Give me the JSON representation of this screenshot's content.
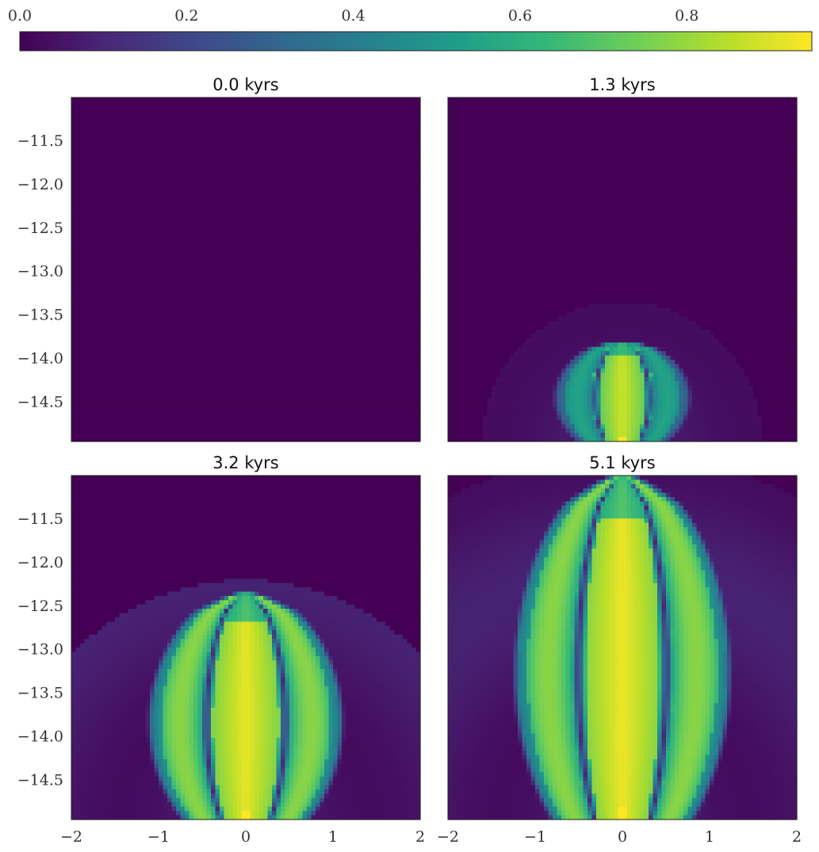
{
  "colormap": {
    "name": "viridis",
    "stops": [
      "#440154",
      "#482878",
      "#3e4989",
      "#31688e",
      "#26828e",
      "#1f9e89",
      "#35b779",
      "#6ece58",
      "#b5de2b",
      "#fde725"
    ],
    "range": [
      0,
      0.95
    ]
  },
  "chart_data": [
    {
      "type": "heatmap",
      "title": "0.0 kyrs",
      "xlim": [
        -2,
        2
      ],
      "ylim": [
        -14.95,
        -11.0
      ],
      "field": {
        "active": false
      },
      "yticks": [
        "−11.5",
        "−12.0",
        "−12.5",
        "−13.0",
        "−13.5",
        "−14.0",
        "−14.5"
      ],
      "xticks": []
    },
    {
      "type": "heatmap",
      "title": "1.3 kyrs",
      "xlim": [
        -2,
        2
      ],
      "ylim": [
        -14.95,
        -11.0
      ],
      "field": {
        "active": true,
        "top": -13.8,
        "halo_radius": 1.6,
        "shell_width": 0.72,
        "core_level": 0.88,
        "ring_level": 0.55
      },
      "yticks": [],
      "xticks": []
    },
    {
      "type": "heatmap",
      "title": "3.2 kyrs",
      "xlim": [
        -2,
        2
      ],
      "ylim": [
        -14.95,
        -11.0
      ],
      "field": {
        "active": true,
        "top": -12.35,
        "halo_radius": 2.75,
        "shell_width": 1.05,
        "core_level": 0.92,
        "ring_level": 0.78
      },
      "yticks": [
        "−11.5",
        "−12.0",
        "−12.5",
        "−13.0",
        "−13.5",
        "−14.0",
        "−14.5"
      ],
      "xticks": [
        "−2",
        "−1",
        "0",
        "1",
        "2"
      ]
    },
    {
      "type": "heatmap",
      "title": "5.1 kyrs",
      "xlim": [
        -2,
        2
      ],
      "ylim": [
        -14.95,
        -11.0
      ],
      "field": {
        "active": true,
        "top": -11.0,
        "halo_radius": 4.2,
        "shell_width": 1.18,
        "core_level": 0.93,
        "ring_level": 0.78
      },
      "yticks": [],
      "xticks": [
        "−2",
        "−1",
        "0",
        "1",
        "2"
      ]
    }
  ],
  "colorbar": {
    "ticks": [
      "0.0",
      "0.2",
      "0.4",
      "0.6",
      "0.8"
    ],
    "tick_values": [
      0.0,
      0.2,
      0.4,
      0.6,
      0.8
    ]
  }
}
